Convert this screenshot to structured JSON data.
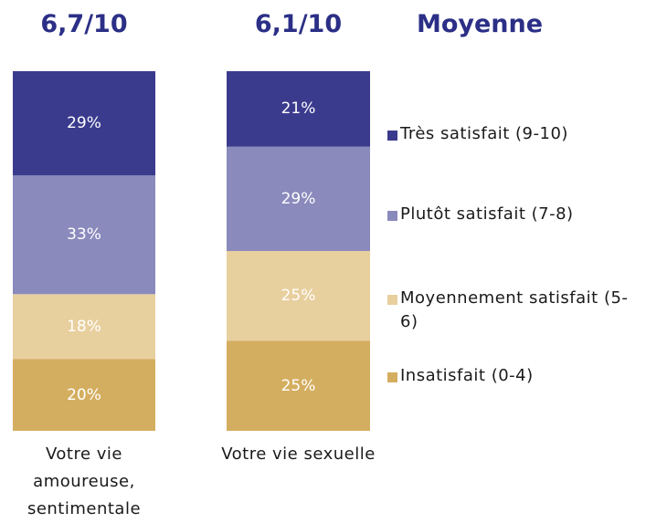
{
  "chart_data": {
    "type": "bar",
    "stacked": true,
    "score_title": "Moyenne",
    "scores": [
      "6,7/10",
      "6,1/10"
    ],
    "categories": [
      "Votre vie amoureuse, sentimentale",
      "Votre vie sexuelle"
    ],
    "series": [
      {
        "name": "Très satisfait (9-10)",
        "color": "#3b3b8e",
        "values": [
          29,
          21
        ],
        "value_labels": [
          "29%",
          "21%"
        ]
      },
      {
        "name": "Plutôt satisfait (7-8)",
        "color": "#8a8abd",
        "values": [
          33,
          29
        ],
        "value_labels": [
          "33%",
          "29%"
        ]
      },
      {
        "name": "Moyennement satisfait (5-6)",
        "color": "#e8cf9e",
        "values": [
          18,
          25
        ],
        "value_labels": [
          "18%",
          "25%"
        ]
      },
      {
        "name": "Insatisfait (0-4)",
        "color": "#d4ae60",
        "values": [
          20,
          25
        ],
        "value_labels": [
          "20%",
          "25%"
        ]
      }
    ],
    "legend": "right"
  }
}
